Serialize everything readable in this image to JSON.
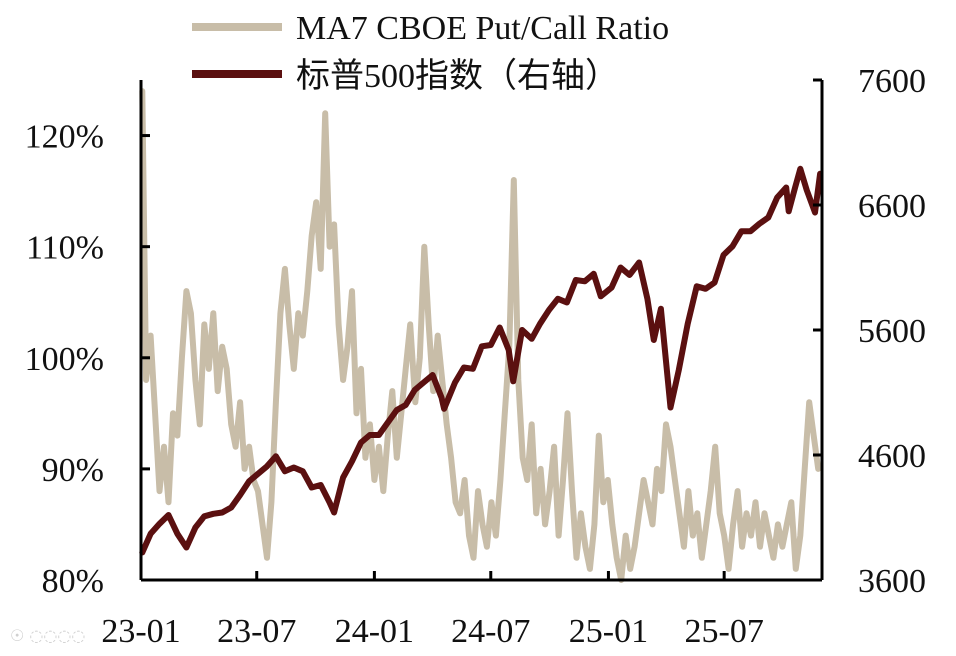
{
  "chart_data": {
    "type": "line",
    "legend_position": "top",
    "grid": false,
    "x_ticks": [
      "23-01",
      "23-07",
      "24-01",
      "24-07",
      "25-01",
      "25-07"
    ],
    "y_left": {
      "ticks": [
        "80%",
        "90%",
        "100%",
        "110%",
        "120%"
      ],
      "range": [
        80,
        125
      ]
    },
    "y_right": {
      "ticks": [
        "3600",
        "4600",
        "5600",
        "6600",
        "7600"
      ],
      "range": [
        3600,
        7600
      ]
    },
    "series": [
      {
        "name": "MA7 CBOE Put/Call Ratio",
        "axis": "left",
        "color": "#c8bda8",
        "points": [
          [
            "2023-01-03",
            124
          ],
          [
            "2023-01-09",
            98
          ],
          [
            "2023-01-16",
            102
          ],
          [
            "2023-01-23",
            95
          ],
          [
            "2023-01-30",
            88
          ],
          [
            "2023-02-06",
            92
          ],
          [
            "2023-02-13",
            87
          ],
          [
            "2023-02-20",
            95
          ],
          [
            "2023-02-27",
            93
          ],
          [
            "2023-03-06",
            100
          ],
          [
            "2023-03-13",
            106
          ],
          [
            "2023-03-20",
            104
          ],
          [
            "2023-03-27",
            98
          ],
          [
            "2023-04-03",
            94
          ],
          [
            "2023-04-10",
            103
          ],
          [
            "2023-04-17",
            99
          ],
          [
            "2023-04-24",
            104
          ],
          [
            "2023-05-01",
            97
          ],
          [
            "2023-05-08",
            101
          ],
          [
            "2023-05-15",
            99
          ],
          [
            "2023-05-22",
            94
          ],
          [
            "2023-05-29",
            92
          ],
          [
            "2023-06-05",
            96
          ],
          [
            "2023-06-12",
            90
          ],
          [
            "2023-06-19",
            92
          ],
          [
            "2023-06-26",
            89
          ],
          [
            "2023-07-03",
            88
          ],
          [
            "2023-07-10",
            85
          ],
          [
            "2023-07-17",
            82
          ],
          [
            "2023-07-24",
            87
          ],
          [
            "2023-07-31",
            96
          ],
          [
            "2023-08-07",
            104
          ],
          [
            "2023-08-14",
            108
          ],
          [
            "2023-08-21",
            103
          ],
          [
            "2023-08-28",
            99
          ],
          [
            "2023-09-04",
            104
          ],
          [
            "2023-09-11",
            102
          ],
          [
            "2023-09-18",
            106
          ],
          [
            "2023-09-25",
            111
          ],
          [
            "2023-10-02",
            114
          ],
          [
            "2023-10-09",
            108
          ],
          [
            "2023-10-16",
            122
          ],
          [
            "2023-10-23",
            110
          ],
          [
            "2023-10-30",
            112
          ],
          [
            "2023-11-06",
            103
          ],
          [
            "2023-11-13",
            98
          ],
          [
            "2023-11-20",
            101
          ],
          [
            "2023-11-27",
            106
          ],
          [
            "2023-12-04",
            95
          ],
          [
            "2023-12-11",
            99
          ],
          [
            "2023-12-18",
            91
          ],
          [
            "2023-12-25",
            94
          ],
          [
            "2024-01-01",
            89
          ],
          [
            "2024-01-08",
            92
          ],
          [
            "2024-01-15",
            88
          ],
          [
            "2024-01-22",
            93
          ],
          [
            "2024-01-29",
            97
          ],
          [
            "2024-02-05",
            91
          ],
          [
            "2024-02-12",
            95
          ],
          [
            "2024-02-19",
            99
          ],
          [
            "2024-02-26",
            103
          ],
          [
            "2024-03-05",
            96
          ],
          [
            "2024-03-12",
            100
          ],
          [
            "2024-03-19",
            110
          ],
          [
            "2024-03-26",
            103
          ],
          [
            "2024-04-02",
            97
          ],
          [
            "2024-04-09",
            102
          ],
          [
            "2024-04-16",
            98
          ],
          [
            "2024-04-23",
            94
          ],
          [
            "2024-04-30",
            91
          ],
          [
            "2024-05-07",
            87
          ],
          [
            "2024-05-14",
            86
          ],
          [
            "2024-05-21",
            89
          ],
          [
            "2024-05-28",
            84
          ],
          [
            "2024-06-04",
            82
          ],
          [
            "2024-06-11",
            88
          ],
          [
            "2024-06-18",
            85
          ],
          [
            "2024-06-25",
            83
          ],
          [
            "2024-07-02",
            87
          ],
          [
            "2024-07-09",
            84
          ],
          [
            "2024-07-16",
            89
          ],
          [
            "2024-07-23",
            95
          ],
          [
            "2024-07-30",
            101
          ],
          [
            "2024-08-06",
            116
          ],
          [
            "2024-08-13",
            98
          ],
          [
            "2024-08-20",
            91
          ],
          [
            "2024-08-27",
            89
          ],
          [
            "2024-09-03",
            94
          ],
          [
            "2024-09-10",
            86
          ],
          [
            "2024-09-17",
            90
          ],
          [
            "2024-09-24",
            85
          ],
          [
            "2024-10-01",
            88
          ],
          [
            "2024-10-08",
            92
          ],
          [
            "2024-10-15",
            84
          ],
          [
            "2024-10-22",
            89
          ],
          [
            "2024-10-29",
            95
          ],
          [
            "2024-11-05",
            88
          ],
          [
            "2024-11-12",
            82
          ],
          [
            "2024-11-19",
            86
          ],
          [
            "2024-11-26",
            83
          ],
          [
            "2024-12-03",
            81
          ],
          [
            "2024-12-10",
            85
          ],
          [
            "2024-12-17",
            93
          ],
          [
            "2024-12-24",
            87
          ],
          [
            "2024-12-31",
            89
          ],
          [
            "2025-01-07",
            85
          ],
          [
            "2025-01-14",
            82
          ],
          [
            "2025-01-21",
            80
          ],
          [
            "2025-01-28",
            84
          ],
          [
            "2025-02-04",
            81
          ],
          [
            "2025-02-11",
            83
          ],
          [
            "2025-02-18",
            86
          ],
          [
            "2025-02-25",
            89
          ],
          [
            "2025-03-04",
            87
          ],
          [
            "2025-03-11",
            85
          ],
          [
            "2025-03-18",
            90
          ],
          [
            "2025-03-25",
            88
          ],
          [
            "2025-04-01",
            94
          ],
          [
            "2025-04-08",
            92
          ],
          [
            "2025-04-15",
            89
          ],
          [
            "2025-04-22",
            86
          ],
          [
            "2025-04-29",
            83
          ],
          [
            "2025-05-06",
            88
          ],
          [
            "2025-05-13",
            84
          ],
          [
            "2025-05-20",
            86
          ],
          [
            "2025-05-27",
            82
          ],
          [
            "2025-06-03",
            85
          ],
          [
            "2025-06-10",
            88
          ],
          [
            "2025-06-17",
            92
          ],
          [
            "2025-06-24",
            86
          ],
          [
            "2025-07-01",
            84
          ],
          [
            "2025-07-08",
            81
          ],
          [
            "2025-07-15",
            85
          ],
          [
            "2025-07-22",
            88
          ],
          [
            "2025-07-29",
            83
          ],
          [
            "2025-08-05",
            86
          ],
          [
            "2025-08-12",
            84
          ],
          [
            "2025-08-19",
            87
          ],
          [
            "2025-08-26",
            83
          ],
          [
            "2025-09-02",
            86
          ],
          [
            "2025-09-09",
            84
          ],
          [
            "2025-09-16",
            82
          ],
          [
            "2025-09-23",
            85
          ],
          [
            "2025-09-30",
            83
          ],
          [
            "2025-10-07",
            85
          ],
          [
            "2025-10-14",
            87
          ],
          [
            "2025-10-21",
            81
          ],
          [
            "2025-10-28",
            84
          ],
          [
            "2025-11-04",
            90
          ],
          [
            "2025-11-11",
            96
          ],
          [
            "2025-11-18",
            93
          ],
          [
            "2025-11-25",
            90
          ]
        ]
      },
      {
        "name": "标普500指数（右轴）",
        "axis": "right",
        "color": "#5b1010",
        "points": [
          [
            "2023-01-03",
            3820
          ],
          [
            "2023-01-16",
            3970
          ],
          [
            "2023-01-30",
            4050
          ],
          [
            "2023-02-13",
            4120
          ],
          [
            "2023-02-27",
            3970
          ],
          [
            "2023-03-13",
            3860
          ],
          [
            "2023-03-27",
            4020
          ],
          [
            "2023-04-10",
            4110
          ],
          [
            "2023-04-24",
            4130
          ],
          [
            "2023-05-08",
            4140
          ],
          [
            "2023-05-22",
            4180
          ],
          [
            "2023-06-05",
            4280
          ],
          [
            "2023-06-19",
            4390
          ],
          [
            "2023-07-03",
            4450
          ],
          [
            "2023-07-17",
            4510
          ],
          [
            "2023-07-31",
            4590
          ],
          [
            "2023-08-14",
            4470
          ],
          [
            "2023-08-28",
            4500
          ],
          [
            "2023-09-11",
            4470
          ],
          [
            "2023-09-25",
            4340
          ],
          [
            "2023-10-09",
            4360
          ],
          [
            "2023-10-23",
            4220
          ],
          [
            "2023-10-30",
            4140
          ],
          [
            "2023-11-13",
            4420
          ],
          [
            "2023-11-27",
            4550
          ],
          [
            "2023-12-11",
            4700
          ],
          [
            "2023-12-25",
            4760
          ],
          [
            "2024-01-08",
            4760
          ],
          [
            "2024-01-22",
            4860
          ],
          [
            "2024-02-05",
            4960
          ],
          [
            "2024-02-19",
            5000
          ],
          [
            "2024-03-04",
            5120
          ],
          [
            "2024-03-18",
            5180
          ],
          [
            "2024-04-01",
            5240
          ],
          [
            "2024-04-15",
            5060
          ],
          [
            "2024-04-19",
            4970
          ],
          [
            "2024-05-06",
            5180
          ],
          [
            "2024-05-20",
            5300
          ],
          [
            "2024-06-03",
            5290
          ],
          [
            "2024-06-17",
            5470
          ],
          [
            "2024-07-01",
            5480
          ],
          [
            "2024-07-15",
            5620
          ],
          [
            "2024-07-29",
            5440
          ],
          [
            "2024-08-05",
            5190
          ],
          [
            "2024-08-19",
            5600
          ],
          [
            "2024-09-03",
            5530
          ],
          [
            "2024-09-16",
            5650
          ],
          [
            "2024-09-30",
            5760
          ],
          [
            "2024-10-14",
            5850
          ],
          [
            "2024-10-28",
            5820
          ],
          [
            "2024-11-11",
            6000
          ],
          [
            "2024-11-25",
            5990
          ],
          [
            "2024-12-09",
            6050
          ],
          [
            "2024-12-20",
            5870
          ],
          [
            "2025-01-06",
            5940
          ],
          [
            "2025-01-20",
            6100
          ],
          [
            "2025-02-03",
            6040
          ],
          [
            "2025-02-18",
            6140
          ],
          [
            "2025-03-03",
            5850
          ],
          [
            "2025-03-13",
            5520
          ],
          [
            "2025-03-24",
            5770
          ],
          [
            "2025-04-08",
            4980
          ],
          [
            "2025-04-21",
            5280
          ],
          [
            "2025-05-05",
            5650
          ],
          [
            "2025-05-19",
            5950
          ],
          [
            "2025-06-02",
            5930
          ],
          [
            "2025-06-16",
            5980
          ],
          [
            "2025-06-30",
            6200
          ],
          [
            "2025-07-14",
            6270
          ],
          [
            "2025-07-28",
            6390
          ],
          [
            "2025-08-11",
            6390
          ],
          [
            "2025-08-25",
            6450
          ],
          [
            "2025-09-08",
            6500
          ],
          [
            "2025-09-22",
            6660
          ],
          [
            "2025-10-06",
            6740
          ],
          [
            "2025-10-10",
            6550
          ],
          [
            "2025-10-20",
            6740
          ],
          [
            "2025-10-28",
            6890
          ],
          [
            "2025-11-07",
            6720
          ],
          [
            "2025-11-20",
            6540
          ],
          [
            "2025-11-28",
            6850
          ]
        ]
      }
    ]
  }
}
